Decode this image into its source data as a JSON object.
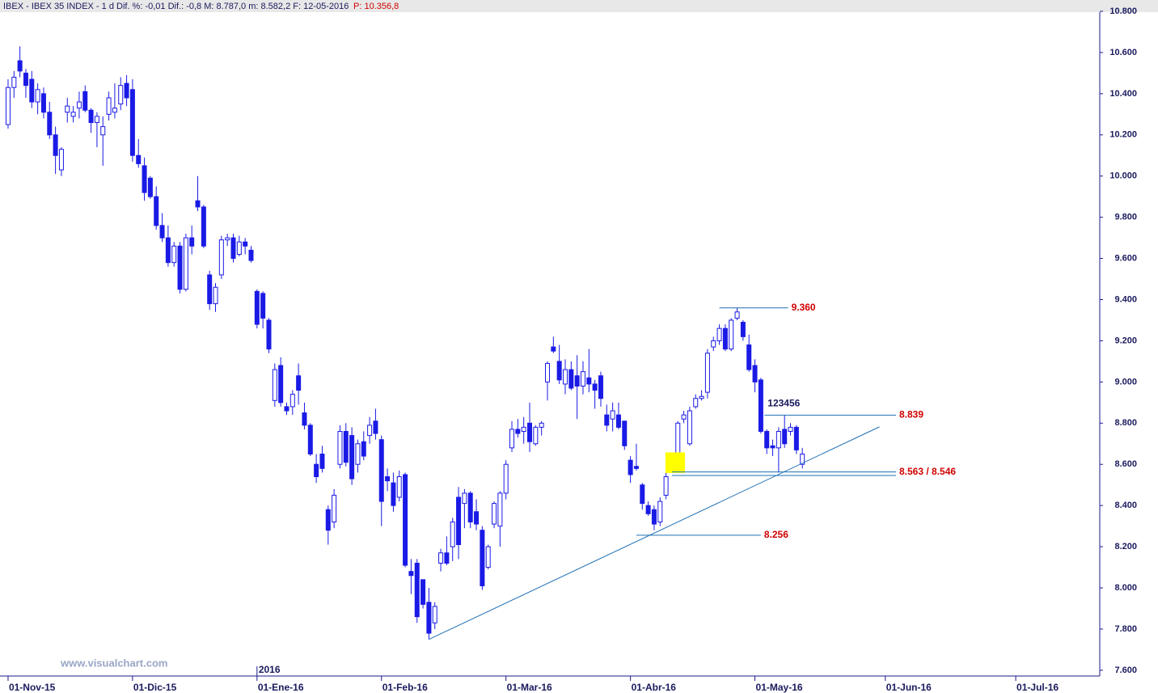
{
  "chart_data": {
    "type": "candlestick",
    "header": "IBEX - IBEX 35 INDEX - 1 d  Dif. %: -0,01  Dif.: -0,8  M: 8.787,0  m: 8.582,2  F: 12-05-2016",
    "header_price": "P: 10.356,8",
    "watermark": "www.visualchart.com",
    "year_marker": {
      "value": 42,
      "label": "2016"
    },
    "color": "#1a1ae6",
    "open": [
      10250,
      10430,
      10560,
      10500,
      10470,
      10360,
      10400,
      10310,
      10200,
      10030,
      10310,
      10290,
      10330,
      10410,
      10320,
      10260,
      10200,
      10300,
      10310,
      10350,
      10450,
      10420,
      10100,
      10050,
      9990,
      9900,
      9760,
      9700,
      9580,
      9660,
      9450,
      9700,
      9880,
      9850,
      9520,
      9380,
      9520,
      9690,
      9700,
      9620,
      9680,
      9640,
      9440,
      9430,
      9300,
      8910,
      9080,
      8880,
      8880,
      9030,
      8850,
      8790,
      8600,
      8650,
      8380,
      8320,
      8600,
      8760,
      8740,
      8600,
      8710,
      8740,
      8810,
      8720,
      8540,
      8510,
      8440,
      8550,
      8080,
      8120,
      8040,
      7930,
      7830,
      8120,
      8170,
      8200,
      8440,
      8410,
      8460,
      8370,
      8280,
      8100,
      8310,
      8300,
      8460,
      8680,
      8770,
      8760,
      8800,
      8700,
      8780,
      9000,
      9170,
      9100,
      8990,
      9060,
      9030,
      8980,
      9020,
      8990,
      9030,
      8840,
      8820,
      8840,
      8810,
      8620,
      8590,
      8500,
      8400,
      8380,
      8320,
      8450,
      8600,
      8620,
      8820,
      8700,
      8880,
      8920,
      8950,
      9170,
      9200,
      9260,
      9160,
      9310,
      9290,
      9180,
      9080,
      9010,
      8760,
      8690,
      8680,
      8770,
      8760,
      8780,
      8600
    ],
    "high": [
      10470,
      10510,
      10630,
      10520,
      10510,
      10450,
      10430,
      10360,
      10240,
      10140,
      10380,
      10340,
      10410,
      10440,
      10330,
      10310,
      10290,
      10410,
      10450,
      10480,
      10490,
      10470,
      10180,
      10090,
      10000,
      9950,
      9820,
      9760,
      9680,
      9680,
      9720,
      9760,
      10000,
      9860,
      9540,
      9480,
      9710,
      9720,
      9720,
      9710,
      9700,
      9660,
      9450,
      9440,
      9310,
      9090,
      9120,
      8900,
      8960,
      9090,
      8900,
      8800,
      8650,
      8690,
      8400,
      8480,
      8790,
      8800,
      8780,
      8720,
      8760,
      8830,
      8870,
      8740,
      8580,
      8560,
      8570,
      8560,
      8140,
      8140,
      8040,
      8000,
      7930,
      8190,
      8250,
      8340,
      8490,
      8480,
      8470,
      8430,
      8300,
      8210,
      8420,
      8470,
      8620,
      8810,
      8820,
      8830,
      8900,
      8790,
      8810,
      9100,
      9220,
      9180,
      9110,
      9100,
      9130,
      9100,
      9160,
      9010,
      9050,
      8890,
      8900,
      8900,
      8810,
      8640,
      8700,
      8510,
      8420,
      8400,
      8440,
      8560,
      8650,
      8810,
      8860,
      8880,
      8940,
      8960,
      9160,
      9220,
      9280,
      9280,
      9310,
      9360,
      9300,
      9230,
      9110,
      9020,
      8770,
      8720,
      8780,
      8840,
      8800,
      8790,
      8680
    ],
    "low": [
      10230,
      10380,
      10480,
      10380,
      10330,
      10300,
      10280,
      10180,
      10010,
      10000,
      10260,
      10260,
      10280,
      10310,
      10210,
      10140,
      10050,
      10270,
      10280,
      10320,
      10340,
      10070,
      10040,
      9880,
      9890,
      9740,
      9680,
      9560,
      9560,
      9430,
      9440,
      9620,
      9830,
      9650,
      9350,
      9340,
      9500,
      9660,
      9580,
      9610,
      9620,
      9580,
      9260,
      9260,
      9140,
      8880,
      8880,
      8840,
      8840,
      8890,
      8770,
      8640,
      8510,
      8560,
      8210,
      8290,
      8580,
      8590,
      8500,
      8560,
      8620,
      8700,
      8720,
      8300,
      8470,
      8370,
      8420,
      8100,
      7970,
      7830,
      7900,
      7750,
      7800,
      8080,
      8110,
      8130,
      8140,
      8290,
      8290,
      8280,
      7990,
      8090,
      8290,
      8200,
      8430,
      8660,
      8730,
      8700,
      8660,
      8690,
      8740,
      8910,
      9140,
      8990,
      8940,
      8960,
      8820,
      8940,
      8950,
      8870,
      8880,
      8760,
      8760,
      8770,
      8670,
      8510,
      8570,
      8380,
      8350,
      8280,
      8300,
      8430,
      8590,
      8610,
      8800,
      8690,
      8870,
      8910,
      8920,
      9150,
      9180,
      9150,
      9150,
      9300,
      9200,
      9050,
      8950,
      8750,
      8650,
      8640,
      8560,
      8680,
      8740,
      8650,
      8580
    ],
    "close": [
      10430,
      10480,
      10510,
      10440,
      10360,
      10420,
      10310,
      10200,
      10100,
      10130,
      10340,
      10310,
      10360,
      10320,
      10260,
      10290,
      10240,
      10380,
      10330,
      10440,
      10380,
      10100,
      10060,
      9920,
      9900,
      9760,
      9700,
      9580,
      9660,
      9450,
      9700,
      9660,
      9850,
      9660,
      9380,
      9460,
      9690,
      9700,
      9600,
      9680,
      9660,
      9590,
      9280,
      9310,
      9160,
      9060,
      8900,
      8860,
      8940,
      8960,
      8790,
      8650,
      8540,
      8580,
      8280,
      8450,
      8760,
      8610,
      8530,
      8700,
      8640,
      8790,
      8750,
      8420,
      8520,
      8400,
      8540,
      8110,
      8060,
      7860,
      7920,
      7780,
      7910,
      8170,
      8120,
      8320,
      8210,
      8460,
      8320,
      8310,
      8010,
      8200,
      8410,
      8460,
      8600,
      8770,
      8750,
      8780,
      8710,
      8780,
      8800,
      9090,
      9150,
      9010,
      9060,
      8970,
      8980,
      9050,
      8990,
      8960,
      8920,
      8790,
      8860,
      8780,
      8690,
      8550,
      8580,
      8410,
      8360,
      8310,
      8420,
      8540,
      8630,
      8800,
      8840,
      8860,
      8920,
      8930,
      9140,
      9200,
      9260,
      9160,
      9300,
      9340,
      9220,
      9060,
      9000,
      8760,
      8680,
      8680,
      8760,
      8700,
      8780,
      8670,
      8650
    ],
    "xlim": [
      -1.36,
      184.18
    ],
    "xticks": [
      {
        "value": 0,
        "label": "01-Nov-15"
      },
      {
        "value": 21,
        "label": "01-Dic-15"
      },
      {
        "value": 42,
        "label": "01-Ene-16"
      },
      {
        "value": 63,
        "label": "01-Feb-16"
      },
      {
        "value": 84,
        "label": "01-Mar-16"
      },
      {
        "value": 105,
        "label": "01-Abr-16"
      },
      {
        "value": 126,
        "label": "01-May-16"
      },
      {
        "value": 148,
        "label": "01-Jun-16"
      },
      {
        "value": 170,
        "label": "01-Jul-16"
      }
    ],
    "ylim": [
      7572,
      10800
    ],
    "yticks": [
      {
        "value": 7600,
        "label": "7.600"
      },
      {
        "value": 7800,
        "label": "7.800"
      },
      {
        "value": 8000,
        "label": "8.000"
      },
      {
        "value": 8200,
        "label": "8.200"
      },
      {
        "value": 8400,
        "label": "8.400"
      },
      {
        "value": 8600,
        "label": "8.600"
      },
      {
        "value": 8800,
        "label": "8.800"
      },
      {
        "value": 9000,
        "label": "9.000"
      },
      {
        "value": 9200,
        "label": "9.200"
      },
      {
        "value": 9400,
        "label": "9.400"
      },
      {
        "value": 9600,
        "label": "9.600"
      },
      {
        "value": 9800,
        "label": "9.800"
      },
      {
        "value": 10000,
        "label": "10.000"
      },
      {
        "value": 10200,
        "label": "10.200"
      },
      {
        "value": 10400,
        "label": "10.400"
      },
      {
        "value": 10600,
        "label": "10.600"
      },
      {
        "value": 10800,
        "label": "10.800"
      }
    ],
    "levels": [
      {
        "values": [
          9360
        ],
        "label": "9.360",
        "x": [
          120,
          131.6
        ]
      },
      {
        "values": [
          8839
        ],
        "label": "8.839",
        "note": "123456",
        "x": [
          127.6,
          149.8
        ]
      },
      {
        "values": [
          8563,
          8546
        ],
        "label": "8.563 / 8.546",
        "x": [
          112,
          149.8
        ]
      },
      {
        "values": [
          8256
        ],
        "label": "8.256",
        "x": [
          106,
          127
        ]
      }
    ],
    "trendline": {
      "x": [
        71,
        147
      ],
      "y": [
        7750,
        8782
      ]
    },
    "highlight": {
      "x": [
        110.9,
        114.2
      ],
      "y": [
        8558,
        8658
      ]
    }
  }
}
